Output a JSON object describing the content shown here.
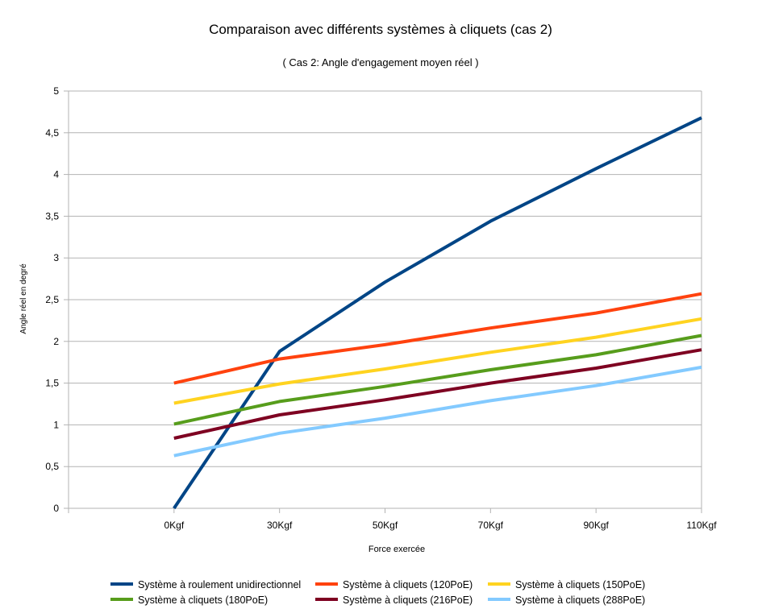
{
  "chart_data": {
    "type": "line",
    "title": "Comparaison avec différents systèmes à cliquets (cas 2)",
    "subtitle": "( Cas 2: Angle d'engagement moyen réel )",
    "xlabel": "Force exercée",
    "ylabel": "Angle réel en degré",
    "categories": [
      "",
      "0Kgf",
      "30Kgf",
      "50Kgf",
      "70Kgf",
      "90Kgf",
      "110Kgf"
    ],
    "ylim": [
      0,
      5
    ],
    "y_ticks": [
      "0",
      "0,5",
      "1",
      "1,5",
      "2",
      "2,5",
      "3",
      "3,5",
      "4",
      "4,5",
      "5"
    ],
    "grid": "horizontal",
    "legend_position": "bottom",
    "series": [
      {
        "name": "Système à roulement unidirectionnel",
        "color": "#004586",
        "values": [
          null,
          0,
          1.88,
          2.71,
          3.44,
          4.07,
          4.68
        ]
      },
      {
        "name": "Système à cliquets (120PoE)",
        "color": "#ff420e",
        "values": [
          null,
          1.5,
          1.79,
          1.96,
          2.16,
          2.34,
          2.57
        ]
      },
      {
        "name": "Système à cliquets (150PoE)",
        "color": "#ffd320",
        "values": [
          null,
          1.26,
          1.49,
          1.67,
          1.87,
          2.05,
          2.27
        ]
      },
      {
        "name": "Système à cliquets (180PoE)",
        "color": "#579d1c",
        "values": [
          null,
          1.01,
          1.28,
          1.46,
          1.66,
          1.84,
          2.07
        ]
      },
      {
        "name": "Système à cliquets (216PoE)",
        "color": "#7e0021",
        "values": [
          null,
          0.84,
          1.12,
          1.3,
          1.5,
          1.68,
          1.9
        ]
      },
      {
        "name": "Système à cliquets (288PoE)",
        "color": "#83caff",
        "values": [
          null,
          0.63,
          0.9,
          1.08,
          1.29,
          1.47,
          1.69
        ]
      }
    ]
  }
}
